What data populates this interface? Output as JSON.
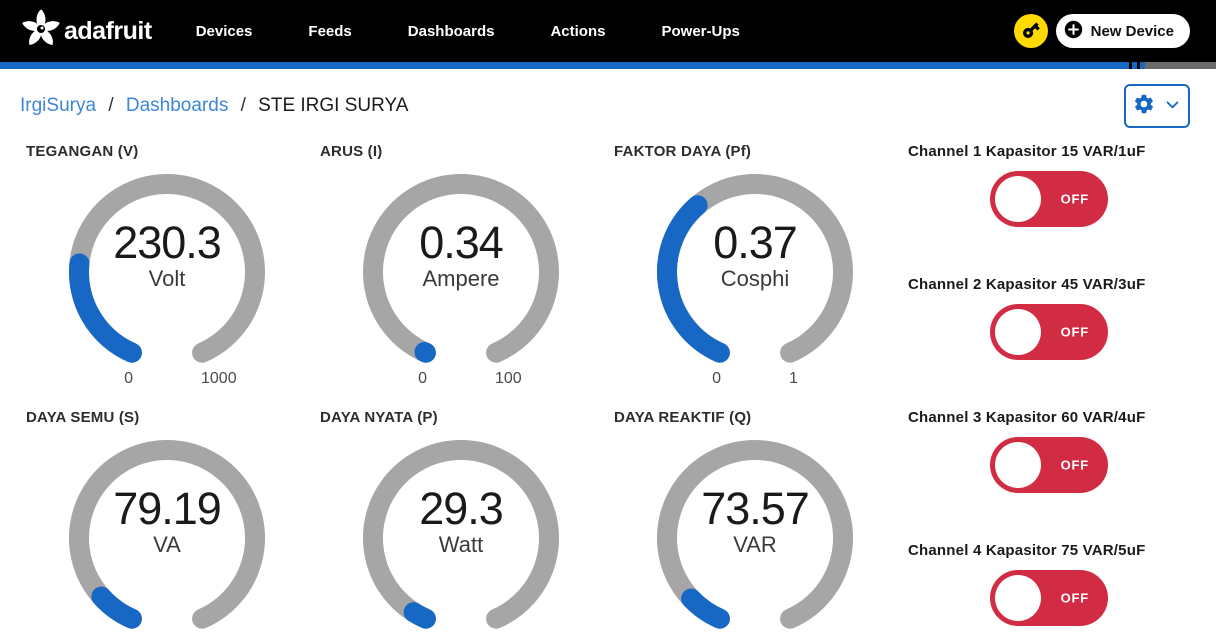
{
  "nav": {
    "brand": "adafruit",
    "items": [
      {
        "label": "Devices"
      },
      {
        "label": "Feeds"
      },
      {
        "label": "Dashboards"
      },
      {
        "label": "Actions"
      },
      {
        "label": "Power-Ups"
      }
    ],
    "new_device_label": "New Device"
  },
  "breadcrumb": {
    "owner": "IrgiSurya",
    "section": "Dashboards",
    "current": "STE IRGI SURYA",
    "separator": "/"
  },
  "chart_data": {
    "type": "gauge",
    "arc": {
      "start_deg": 113.5,
      "sweep_deg": 313,
      "track_color": "#a6a6a6",
      "fill_color": "#1668c4"
    },
    "gauges": [
      {
        "title": "TEGANGAN (V)",
        "value": 230.3,
        "unit": "Volt",
        "min_label": "0",
        "max_label": "1000",
        "fraction": 0.2303
      },
      {
        "title": "ARUS (I)",
        "value": 0.34,
        "unit": "Ampere",
        "min_label": "0",
        "max_label": "100",
        "fraction": 0.0034
      },
      {
        "title": "FAKTOR DAYA (Pf)",
        "value": 0.37,
        "unit": "Cosphi",
        "min_label": "0",
        "max_label": "1",
        "fraction": 0.37
      },
      {
        "title": "DAYA SEMU (S)",
        "value": 79.19,
        "unit": "VA",
        "min_label": "",
        "max_label": "",
        "fraction": 0.079
      },
      {
        "title": "DAYA NYATA (P)",
        "value": 29.3,
        "unit": "Watt",
        "min_label": "",
        "max_label": "",
        "fraction": 0.029
      },
      {
        "title": "DAYA REAKTIF (Q)",
        "value": 73.57,
        "unit": "VAR",
        "min_label": "",
        "max_label": "",
        "fraction": 0.0736
      }
    ]
  },
  "toggles": [
    {
      "label": "Channel 1 Kapasitor 15 VAR/1uF",
      "state": "OFF"
    },
    {
      "label": "Channel 2 Kapasitor 45 VAR/3uF",
      "state": "OFF"
    },
    {
      "label": "Channel 3 Kapasitor 60 VAR/4uF",
      "state": "OFF"
    },
    {
      "label": "Channel 4 Kapasitor 75 VAR/5uF",
      "state": "OFF"
    }
  ],
  "colors": {
    "accent_blue": "#1668c4",
    "link_blue": "#3e86d8",
    "toggle_red": "#d22c45",
    "track_gray": "#a6a6a6",
    "key_yellow": "#ffd900"
  }
}
